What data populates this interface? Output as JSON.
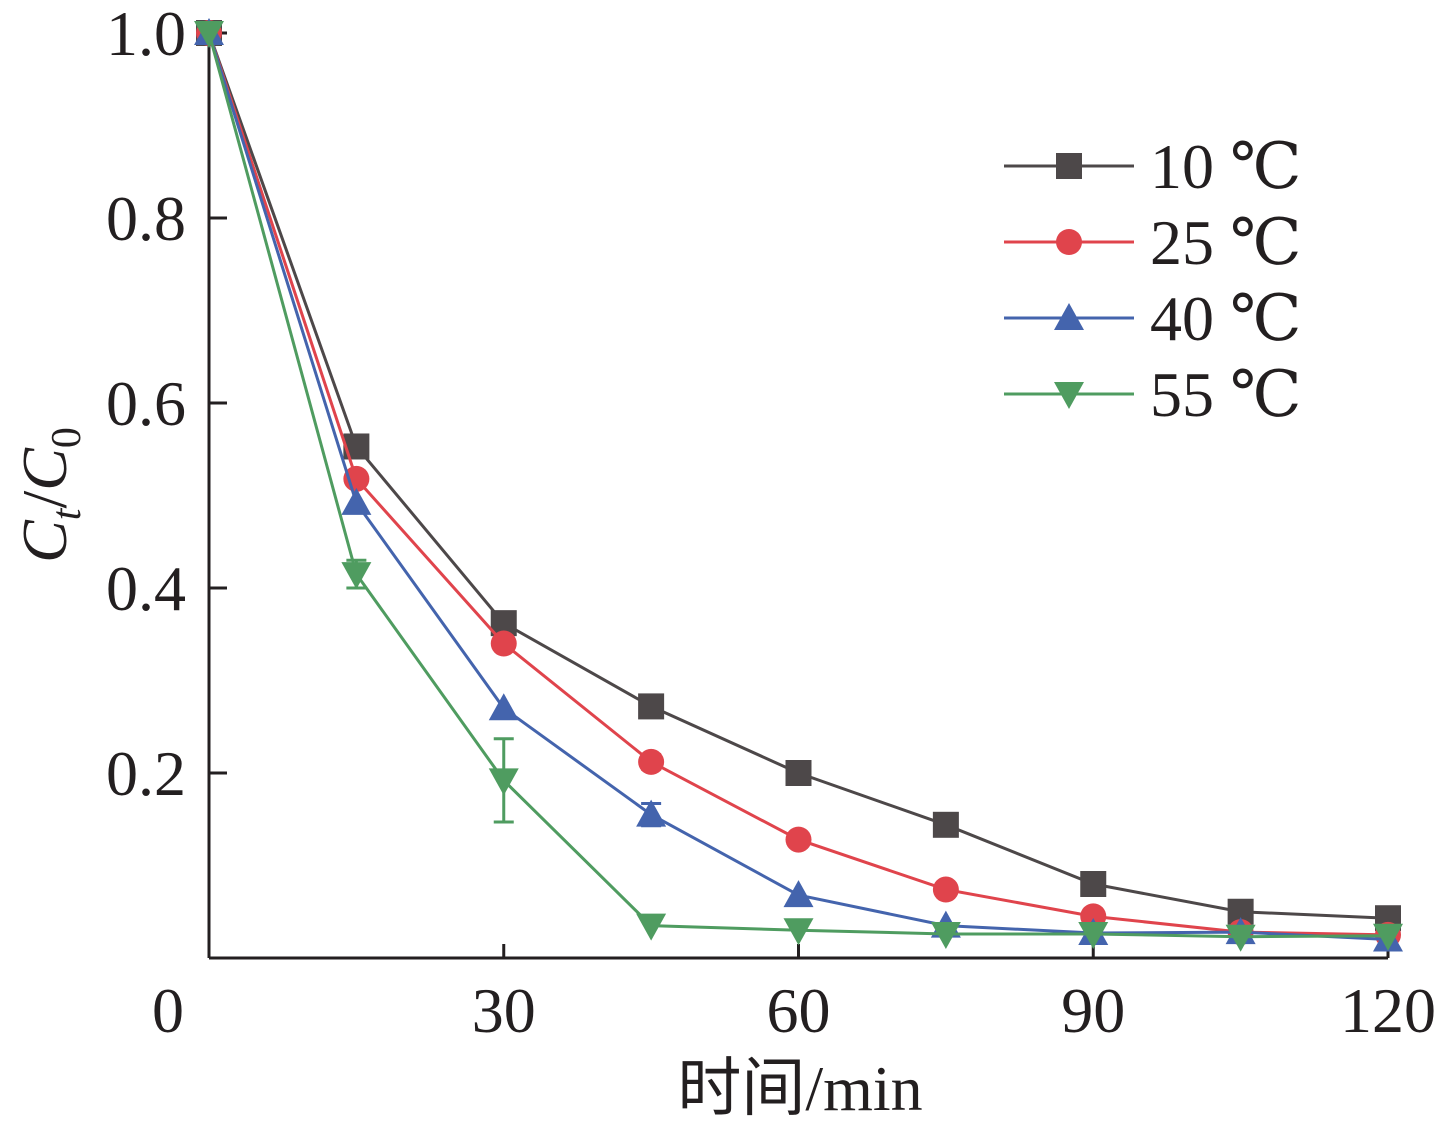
{
  "chart_data": {
    "type": "line",
    "xlabel": "时间/min",
    "ylabel": {
      "base": "C",
      "sub1": "t",
      "slash": "/",
      "base2": "C",
      "sub2": "0"
    },
    "xlim": [
      0,
      120
    ],
    "ylim": [
      0,
      1.0
    ],
    "x_ticks": [
      0,
      30,
      60,
      90,
      120
    ],
    "x_tick_labels": [
      "0",
      "30",
      "60",
      "90",
      "120"
    ],
    "y_ticks": [
      0.2,
      0.4,
      0.6,
      0.8,
      1.0
    ],
    "y_tick_labels": [
      "0.2",
      "0.4",
      "0.6",
      "0.8",
      "1.0"
    ],
    "grid": false,
    "legend_position": "top-right",
    "x": [
      0,
      15,
      30,
      45,
      60,
      75,
      90,
      105,
      120
    ],
    "series": [
      {
        "name": "10 ℃",
        "marker": "square",
        "color": "#4d4849",
        "values": [
          1.0,
          0.553,
          0.362,
          0.272,
          0.2,
          0.144,
          0.08,
          0.05,
          0.043
        ],
        "errors": [
          0,
          0,
          0,
          0,
          0,
          0,
          0,
          0,
          0
        ]
      },
      {
        "name": "25 ℃",
        "marker": "circle",
        "color": "#e0444c",
        "values": [
          1.0,
          0.518,
          0.34,
          0.212,
          0.128,
          0.074,
          0.045,
          0.028,
          0.025
        ],
        "errors": [
          0,
          0,
          0,
          0.008,
          0,
          0,
          0,
          0,
          0
        ]
      },
      {
        "name": "40 ℃",
        "marker": "triangle-up",
        "color": "#4464ad",
        "values": [
          1.0,
          0.492,
          0.27,
          0.155,
          0.068,
          0.035,
          0.027,
          0.028,
          0.02
        ],
        "errors": [
          0,
          0,
          0,
          0.012,
          0,
          0,
          0,
          0,
          0
        ]
      },
      {
        "name": "55 ℃",
        "marker": "triangle-down",
        "color": "#4f9c60",
        "values": [
          1.0,
          0.415,
          0.192,
          0.035,
          0.03,
          0.026,
          0.026,
          0.023,
          0.024
        ],
        "errors": [
          0,
          0.015,
          0.045,
          0,
          0,
          0,
          0,
          0,
          0
        ]
      }
    ]
  }
}
